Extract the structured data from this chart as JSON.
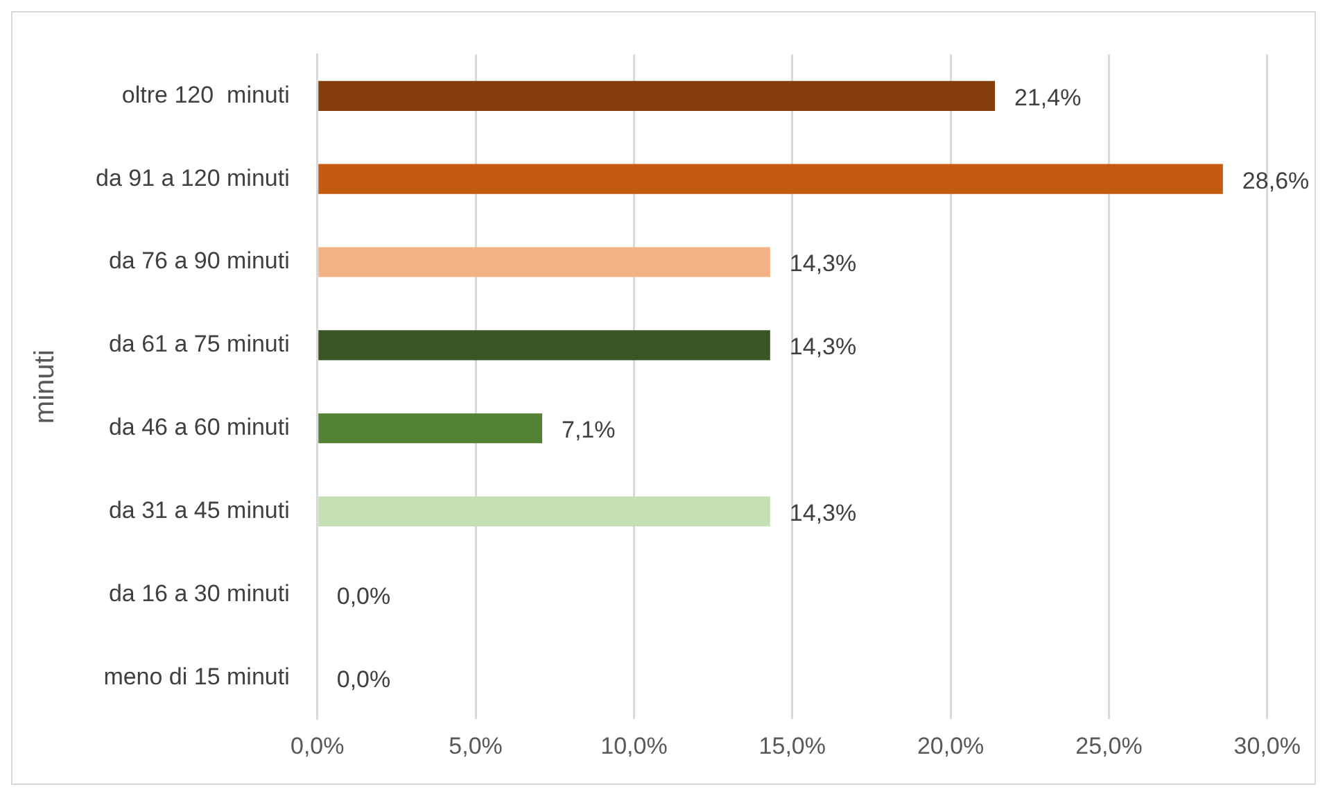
{
  "chart_data": {
    "type": "bar",
    "orientation": "horizontal",
    "ylabel": "minuti",
    "categories": [
      "oltre 120  minuti",
      "da 91 a 120 minuti",
      "da 76 a 90 minuti",
      "da 61 a 75 minuti",
      "da 46 a 60 minuti",
      "da 31 a 45 minuti",
      "da 16 a 30 minuti",
      "meno di 15 minuti"
    ],
    "values": [
      21.4,
      28.6,
      14.3,
      14.3,
      7.1,
      14.3,
      0,
      0
    ],
    "colors": [
      "#843c0c",
      "#c55a11",
      "#f4b183",
      "#375623",
      "#548235",
      "#c5e0b4",
      "#a9d18e",
      "#a9d18e"
    ],
    "value_labels": [
      "21,4%",
      "28,6%",
      "14,3%",
      "14,3%",
      "7,1%",
      "14,3%",
      "0,0%",
      "0,0%"
    ],
    "xlim": [
      0,
      30
    ],
    "xticks": [
      {
        "value": 0,
        "label": "0,0%"
      },
      {
        "value": 5,
        "label": "5,0%"
      },
      {
        "value": 10,
        "label": "10,0%"
      },
      {
        "value": 15,
        "label": "15,0%"
      },
      {
        "value": 20,
        "label": "20,0%"
      },
      {
        "value": 25,
        "label": "25,0%"
      },
      {
        "value": 30,
        "label": "30,0%"
      }
    ],
    "grid": "x",
    "legend": false
  }
}
